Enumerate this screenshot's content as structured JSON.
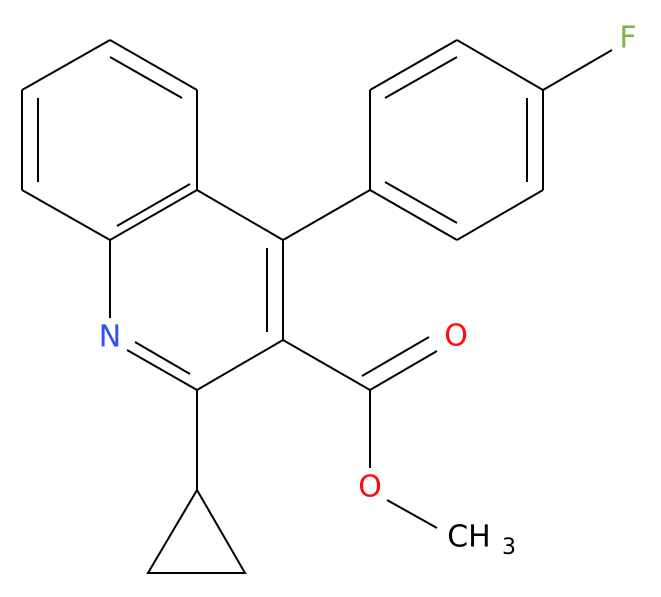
{
  "atoms": [
    {
      "label": "N"
    },
    {
      "label": "O"
    },
    {
      "label": "O"
    },
    {
      "label": "F"
    },
    {
      "label": "CH",
      "subscript": "3"
    }
  ]
}
